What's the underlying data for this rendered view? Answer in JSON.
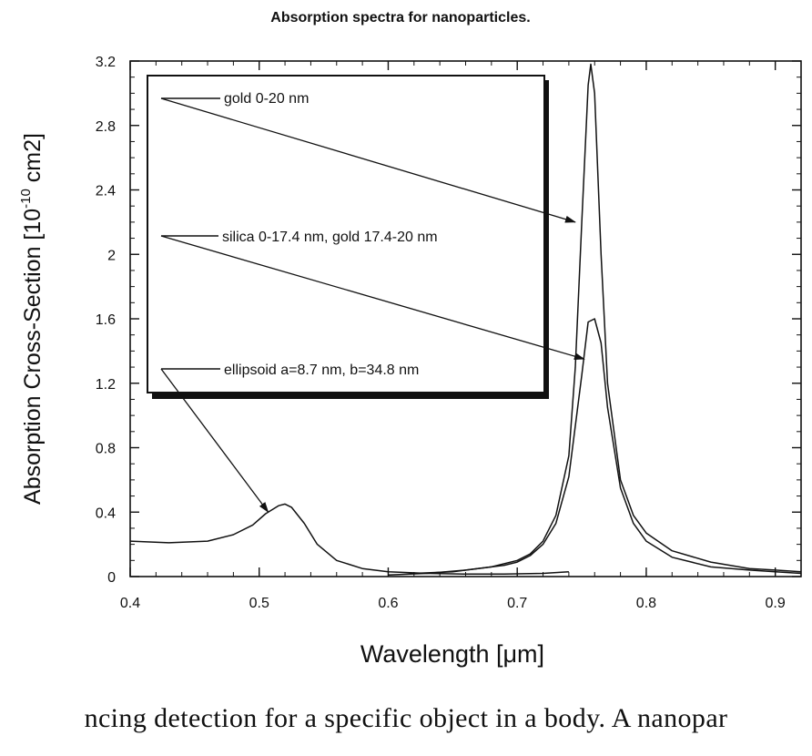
{
  "chart_data": {
    "type": "line",
    "title": "Absorption spectra for nanoparticles.",
    "xlabel": "Wavelength [μm]",
    "ylabel": {
      "base": "Absorption Cross-Section [10",
      "exponent": "-10",
      "unit": " cm2]"
    },
    "xlim": [
      0.4,
      0.92
    ],
    "ylim": [
      0,
      3.2
    ],
    "xticks": [
      0.4,
      0.5,
      0.6,
      0.7,
      0.8,
      0.9
    ],
    "xtick_labels": [
      "0.4",
      "0.5",
      "0.6",
      "0.7",
      "0.8",
      "0.9"
    ],
    "yticks": [
      0,
      0.4,
      0.8,
      1.2,
      1.6,
      2,
      2.4,
      2.8,
      3.2
    ],
    "ytick_labels": [
      "0",
      "0.4",
      "0.8",
      "1.2",
      "1.6",
      "2",
      "2.4",
      "2.8",
      "3.2"
    ],
    "grid": false,
    "legend": "boxed inset at top-left with arrows pointing to each curve",
    "series": [
      {
        "name": "gold 0-20 nm",
        "x": [
          0.62,
          0.65,
          0.68,
          0.7,
          0.71,
          0.72,
          0.73,
          0.74,
          0.745,
          0.75,
          0.755,
          0.757,
          0.76,
          0.765,
          0.77,
          0.78,
          0.79,
          0.8,
          0.82,
          0.85,
          0.88,
          0.9,
          0.92
        ],
        "y": [
          0.02,
          0.03,
          0.06,
          0.1,
          0.14,
          0.22,
          0.38,
          0.75,
          1.3,
          2.2,
          3.05,
          3.18,
          3.0,
          2.0,
          1.2,
          0.6,
          0.38,
          0.27,
          0.16,
          0.09,
          0.05,
          0.04,
          0.03
        ],
        "arrow_to": [
          0.745,
          2.2
        ]
      },
      {
        "name": "silica 0-17.4 nm, gold 17.4-20 nm",
        "x": [
          0.6,
          0.63,
          0.66,
          0.69,
          0.7,
          0.71,
          0.72,
          0.73,
          0.74,
          0.75,
          0.755,
          0.76,
          0.765,
          0.77,
          0.78,
          0.79,
          0.8,
          0.82,
          0.85,
          0.88,
          0.9,
          0.92
        ],
        "y": [
          0.01,
          0.02,
          0.04,
          0.07,
          0.09,
          0.13,
          0.2,
          0.33,
          0.62,
          1.25,
          1.58,
          1.6,
          1.45,
          1.05,
          0.55,
          0.33,
          0.22,
          0.12,
          0.06,
          0.04,
          0.03,
          0.02
        ],
        "arrow_to": [
          0.752,
          1.35
        ]
      },
      {
        "name": "ellipsoid a=8.7 nm, b=34.8 nm",
        "x": [
          0.4,
          0.43,
          0.46,
          0.48,
          0.495,
          0.505,
          0.515,
          0.52,
          0.525,
          0.535,
          0.545,
          0.56,
          0.58,
          0.6,
          0.63,
          0.66,
          0.69,
          0.72,
          0.74
        ],
        "y": [
          0.22,
          0.21,
          0.22,
          0.26,
          0.32,
          0.39,
          0.44,
          0.45,
          0.43,
          0.33,
          0.2,
          0.1,
          0.05,
          0.03,
          0.02,
          0.015,
          0.015,
          0.02,
          0.03
        ],
        "arrow_to": [
          0.507,
          0.4
        ]
      }
    ]
  },
  "page": {
    "caption_fragment": "ncing detection for a specific object in a body.  A nanopar"
  }
}
